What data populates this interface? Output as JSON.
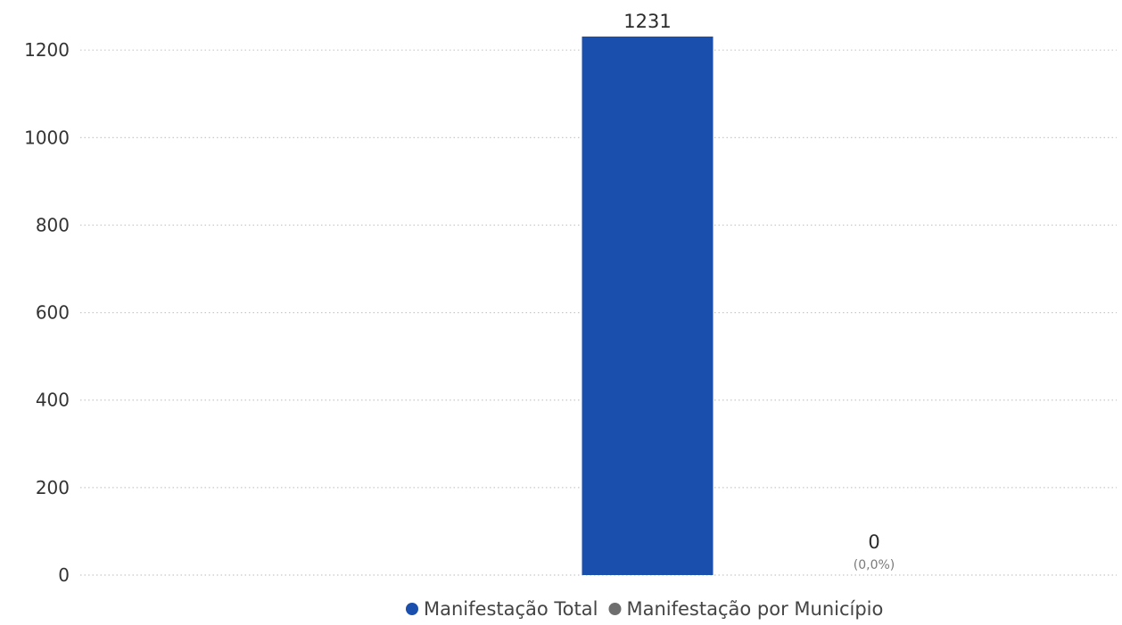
{
  "chart_data": {
    "type": "bar",
    "categories": [
      "Manifestação Total",
      "Manifestação por Município"
    ],
    "series": [
      {
        "name": "Manifestação Total",
        "color": "#1a4fad",
        "values": [
          1231,
          null
        ]
      },
      {
        "name": "Manifestação por Município",
        "color": "#6e6e6e",
        "values": [
          null,
          0
        ]
      }
    ],
    "data_labels": [
      {
        "value": "1231",
        "sublabel": ""
      },
      {
        "value": "0",
        "sublabel": "(0,0%)"
      }
    ],
    "yticks": [
      "0",
      "200",
      "400",
      "600",
      "800",
      "1000",
      "1200"
    ],
    "ylim": [
      0,
      1231
    ],
    "grid": true,
    "legend_position": "bottom"
  }
}
